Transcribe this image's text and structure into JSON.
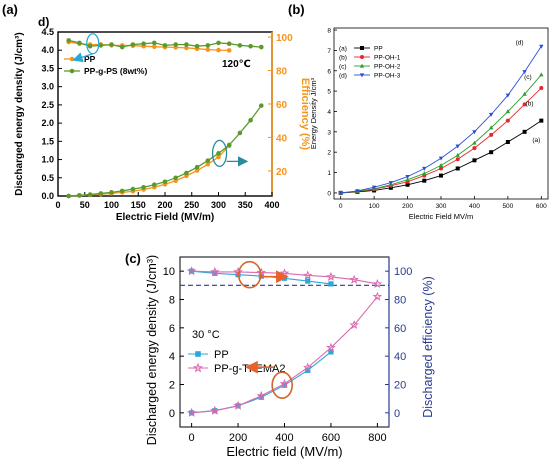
{
  "colors": {
    "pp_orange": "#f7941d",
    "ppgps_green": "#5a9a2a",
    "axis_orange": "#f7941d",
    "black": "#000000",
    "red": "#e8262a",
    "green": "#2ca02c",
    "blue": "#2a50d8",
    "cyan": "#29a9d9",
    "pink": "#d96ab0",
    "navy": "#2b3a8f",
    "callout_circle": "#d4652b"
  },
  "chart_data": [
    {
      "id": "a",
      "type": "line",
      "panel_label": "(a)",
      "corner_label": "d)",
      "annotation": "120℃",
      "xlabel": "Electric Field (MV/m)",
      "ylabel_left": "Discharged energy density (J/cm³)",
      "ylabel_right": "Efficiency (%)",
      "xlim": [
        0,
        400
      ],
      "ylim_left": [
        0,
        4.5
      ],
      "ylim_right": [
        0,
        100
      ],
      "xticks": [
        0,
        50,
        100,
        150,
        200,
        250,
        300,
        350,
        400
      ],
      "yticks_left": [
        "0.0",
        "0.5",
        "1.0",
        "1.5",
        "2.0",
        "2.5",
        "3.0",
        "3.5",
        "4.0",
        "4.5"
      ],
      "yticks_right": [
        "20",
        "40",
        "60",
        "80",
        "100"
      ],
      "legend": [
        "PP",
        "PP-g-PS (8wt%)"
      ],
      "series": [
        {
          "name": "PP",
          "axis": "left",
          "color": "#f7941d",
          "x": [
            20,
            40,
            60,
            80,
            100,
            120,
            140,
            160,
            180,
            200,
            220,
            240,
            260,
            280,
            300,
            320
          ],
          "y": [
            0.0,
            0.01,
            0.03,
            0.05,
            0.07,
            0.1,
            0.13,
            0.18,
            0.24,
            0.32,
            0.42,
            0.55,
            0.7,
            0.87,
            1.07,
            1.38
          ]
        },
        {
          "name": "PP-g-PS (8wt%)",
          "axis": "left",
          "color": "#5a9a2a",
          "x": [
            20,
            40,
            60,
            80,
            100,
            120,
            140,
            160,
            180,
            200,
            220,
            240,
            260,
            280,
            300,
            320,
            340,
            360,
            380
          ],
          "y": [
            0.0,
            0.02,
            0.04,
            0.07,
            0.1,
            0.14,
            0.19,
            0.24,
            0.31,
            0.39,
            0.5,
            0.63,
            0.79,
            0.97,
            1.17,
            1.4,
            1.73,
            2.08,
            2.48
          ]
        },
        {
          "name": "PP",
          "axis": "right",
          "color": "#f7941d",
          "x": [
            20,
            40,
            60,
            80,
            100,
            120,
            140,
            160,
            180,
            200,
            220,
            240,
            260,
            280,
            300,
            320
          ],
          "y": [
            97,
            96,
            95.5,
            95.6,
            95,
            95,
            94.8,
            94.5,
            94.2,
            94,
            93.8,
            93.5,
            93,
            92.5,
            92.2,
            92
          ]
        },
        {
          "name": "PP-g-PS (8wt%)",
          "axis": "right",
          "color": "#5a9a2a",
          "x": [
            20,
            40,
            60,
            80,
            100,
            120,
            140,
            160,
            180,
            200,
            220,
            240,
            260,
            280,
            300,
            320,
            340,
            360,
            380
          ],
          "y": [
            98,
            96.5,
            94.5,
            95,
            95.5,
            94,
            95.5,
            96,
            96.5,
            95,
            95.5,
            95.5,
            94.5,
            95,
            96.5,
            96,
            95,
            94.5,
            94
          ]
        }
      ]
    },
    {
      "id": "b",
      "type": "line",
      "panel_label": "(b)",
      "xlabel": "Electric Field MV/m",
      "ylabel": "Energy Density J/cm³",
      "xlim": [
        0,
        620
      ],
      "ylim": [
        -0.3,
        8
      ],
      "xticks": [
        0,
        100,
        200,
        300,
        400,
        500,
        600
      ],
      "yticks": [
        0,
        1,
        2,
        3,
        4,
        5,
        6,
        7,
        8
      ],
      "legend": [
        "(a)  PP",
        "(b)  PP-OH-1",
        "(c)  PP-OH-2",
        "(d)  PP-OH-3"
      ],
      "curve_labels": [
        "(a)",
        "(b)",
        "(c)",
        "(d)"
      ],
      "series": [
        {
          "name": "PP",
          "color": "#000000",
          "marker": "square",
          "x": [
            0,
            50,
            100,
            150,
            200,
            250,
            300,
            350,
            400,
            450,
            500,
            550,
            600
          ],
          "y": [
            0,
            0.05,
            0.12,
            0.25,
            0.4,
            0.6,
            0.85,
            1.2,
            1.6,
            2.0,
            2.5,
            3.0,
            3.55
          ]
        },
        {
          "name": "PP-OH-1",
          "color": "#e8262a",
          "marker": "circle",
          "x": [
            0,
            50,
            100,
            150,
            200,
            250,
            300,
            350,
            400,
            450,
            500,
            550,
            600
          ],
          "y": [
            0,
            0.07,
            0.18,
            0.35,
            0.55,
            0.85,
            1.2,
            1.65,
            2.2,
            2.85,
            3.55,
            4.35,
            5.15
          ]
        },
        {
          "name": "PP-OH-2",
          "color": "#2ca02c",
          "marker": "triangle-up",
          "x": [
            0,
            50,
            100,
            150,
            200,
            250,
            300,
            350,
            400,
            450,
            500,
            550,
            600
          ],
          "y": [
            0,
            0.08,
            0.2,
            0.4,
            0.65,
            0.95,
            1.35,
            1.85,
            2.45,
            3.2,
            4.0,
            4.85,
            5.8
          ]
        },
        {
          "name": "PP-OH-3",
          "color": "#2a50d8",
          "marker": "triangle-down",
          "x": [
            0,
            50,
            100,
            150,
            200,
            250,
            300,
            350,
            400,
            450,
            500,
            550,
            600
          ],
          "y": [
            0,
            0.1,
            0.28,
            0.5,
            0.8,
            1.2,
            1.7,
            2.3,
            3.0,
            3.85,
            4.8,
            5.95,
            7.2
          ]
        }
      ]
    },
    {
      "id": "c",
      "type": "line",
      "panel_label": "(c)",
      "annotation": "30 °C",
      "xlabel": "Electric field (MV/m)",
      "ylabel_left": "Discharged energy density (J/cm³)",
      "ylabel_right": "Discharged efficiency (%)",
      "xlim": [
        -50,
        850
      ],
      "ylim_left": [
        -1,
        11
      ],
      "ylim_right": [
        -10,
        110
      ],
      "xticks": [
        0,
        200,
        400,
        600,
        800
      ],
      "yticks_left": [
        0,
        2,
        4,
        6,
        8,
        10
      ],
      "yticks_right": [
        0,
        20,
        40,
        60,
        80,
        100
      ],
      "reference_line_right": 90,
      "legend": [
        "PP",
        "PP-g-TFEMA2"
      ],
      "series": [
        {
          "name": "PP",
          "axis": "left",
          "color": "#29a9d9",
          "marker": "square",
          "x": [
            0,
            100,
            200,
            300,
            400,
            500,
            600
          ],
          "y": [
            0,
            0.15,
            0.5,
            1.1,
            1.95,
            3.0,
            4.3
          ]
        },
        {
          "name": "PP-g-TFEMA2",
          "axis": "left",
          "color": "#d96ab0",
          "marker": "star",
          "x": [
            0,
            100,
            200,
            300,
            400,
            500,
            600,
            700,
            800
          ],
          "y": [
            0,
            0.15,
            0.5,
            1.2,
            2.05,
            3.2,
            4.6,
            6.2,
            8.2
          ]
        },
        {
          "name": "PP",
          "axis": "right",
          "color": "#29a9d9",
          "marker": "square",
          "x": [
            0,
            100,
            200,
            300,
            400,
            500,
            600
          ],
          "y": [
            100,
            98.5,
            97.5,
            96.5,
            95,
            93,
            91
          ]
        },
        {
          "name": "PP-g-TFEMA2",
          "axis": "right",
          "color": "#d96ab0",
          "marker": "star",
          "x": [
            0,
            100,
            200,
            300,
            400,
            500,
            600,
            700,
            800
          ],
          "y": [
            100,
            99.5,
            99.5,
            99,
            98.5,
            97,
            96,
            94,
            91
          ]
        }
      ]
    }
  ]
}
